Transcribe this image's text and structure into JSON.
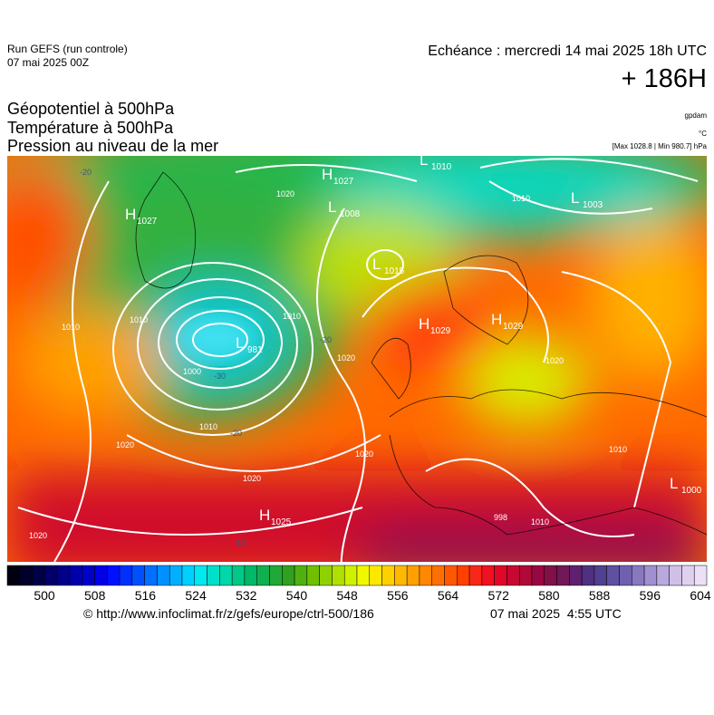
{
  "header": {
    "run": "Run GEFS (run controle)",
    "run_date": "07 mai 2025 00Z",
    "echeance": "Echéance : mercredi 14 mai 2025 18h UTC",
    "lead": "+ 186H",
    "fields": [
      "Géopotentiel à 500hPa",
      "Température à 500hPa",
      "Pression au niveau de la mer"
    ],
    "units": [
      "gpdam",
      "°C",
      "[Max 1028.8 | Min 980.7] hPa"
    ]
  },
  "map": {
    "pressure_systems": [
      {
        "letter": "H",
        "value": "1027"
      },
      {
        "letter": "L",
        "value": "1010"
      },
      {
        "letter": "L",
        "value": "1008"
      },
      {
        "letter": "L",
        "value": "1003"
      },
      {
        "letter": "H",
        "value": "1027"
      },
      {
        "letter": "L",
        "value": "1015"
      },
      {
        "letter": "L",
        "value": "981"
      },
      {
        "letter": "H",
        "value": "1029"
      },
      {
        "letter": "H",
        "value": "1029"
      },
      {
        "letter": "H",
        "value": "1025"
      },
      {
        "letter": "L",
        "value": "1000"
      }
    ],
    "isobar_labels": [
      "1020",
      "1010",
      "1010",
      "1010",
      "1000",
      "1010",
      "1020",
      "1010",
      "1020",
      "1020",
      "1020",
      "1020",
      "1010",
      "1020",
      "1010",
      "998"
    ],
    "temperature_labels": [
      "-20",
      "-30",
      "-20",
      "-20",
      "-10"
    ]
  },
  "colorbar": {
    "colors": [
      "#000010",
      "#00002a",
      "#000048",
      "#000068",
      "#000088",
      "#0000a8",
      "#0000c8",
      "#0000e8",
      "#0010ff",
      "#0030ff",
      "#0050ff",
      "#0070ff",
      "#0090ff",
      "#00b0ff",
      "#00d0ff",
      "#00e8f0",
      "#00e0c8",
      "#00d8a8",
      "#00c888",
      "#00b868",
      "#10b050",
      "#20a838",
      "#30a020",
      "#50b010",
      "#70c000",
      "#90d000",
      "#b0e000",
      "#d0f000",
      "#f0f800",
      "#ffe800",
      "#ffd000",
      "#ffb800",
      "#ffa000",
      "#ff8800",
      "#ff7000",
      "#ff5800",
      "#ff4000",
      "#f82818",
      "#f01020",
      "#e00828",
      "#c80830",
      "#b00838",
      "#980840",
      "#801048",
      "#701858",
      "#602070",
      "#503080",
      "#504090",
      "#6050a0",
      "#7060b0",
      "#8878c0",
      "#a090d0",
      "#b8a8dc",
      "#d0c0e8",
      "#e0d0f0",
      "#ece0f8"
    ],
    "ticks": [
      500,
      508,
      516,
      524,
      532,
      540,
      548,
      556,
      564,
      572,
      580,
      588,
      596,
      604
    ]
  },
  "footer": {
    "url": "© http://www.infoclimat.fr/z/gefs/europe/ctrl-500/186",
    "generated": "07 mai 2025  4:55 UTC"
  }
}
